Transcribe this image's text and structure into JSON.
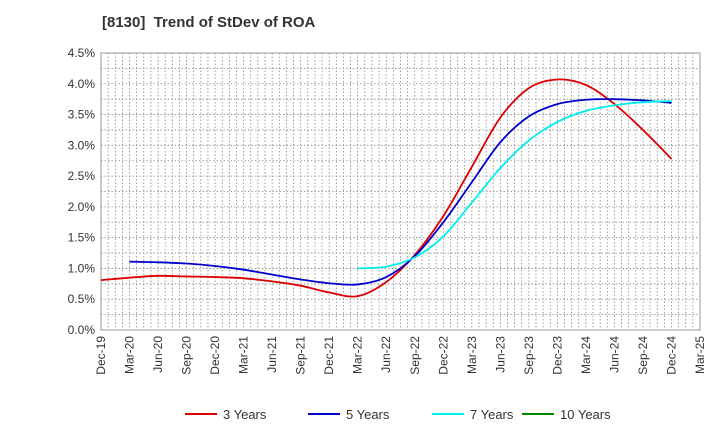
{
  "chart_data": {
    "type": "line",
    "title": "[8130]  Trend of StDev of ROA",
    "xlabel": "",
    "ylabel": "",
    "x_ticks": [
      "Dec-19",
      "Mar-20",
      "Jun-20",
      "Sep-20",
      "Dec-20",
      "Mar-21",
      "Jun-21",
      "Sep-21",
      "Dec-21",
      "Mar-22",
      "Jun-22",
      "Sep-22",
      "Dec-22",
      "Mar-23",
      "Jun-23",
      "Sep-23",
      "Dec-23",
      "Mar-24",
      "Jun-24",
      "Sep-24",
      "Dec-24",
      "Mar-25"
    ],
    "y_ticks": [
      "0.0%",
      "0.5%",
      "1.0%",
      "1.5%",
      "2.0%",
      "2.5%",
      "3.0%",
      "3.5%",
      "4.0%",
      "4.5%"
    ],
    "ylim": [
      0,
      4.5
    ],
    "y_unit": "%",
    "grid": true,
    "legend_position": "bottom",
    "series": [
      {
        "name": "3 Years",
        "color": "#dd0000",
        "x": [
          "Dec-19",
          "Mar-20",
          "Jun-20",
          "Sep-20",
          "Dec-20",
          "Mar-21",
          "Jun-21",
          "Sep-21",
          "Dec-21",
          "Mar-22",
          "Jun-22",
          "Sep-22",
          "Dec-22",
          "Mar-23",
          "Jun-23",
          "Sep-23",
          "Dec-23",
          "Mar-24",
          "Jun-24",
          "Sep-24",
          "Dec-24"
        ],
        "values": [
          0.81,
          0.85,
          0.88,
          0.87,
          0.86,
          0.84,
          0.79,
          0.72,
          0.61,
          0.55,
          0.78,
          1.22,
          1.85,
          2.65,
          3.45,
          3.93,
          4.07,
          3.98,
          3.67,
          3.25,
          2.78
        ]
      },
      {
        "name": "5 Years",
        "color": "#0000cc",
        "x": [
          "Mar-20",
          "Jun-20",
          "Sep-20",
          "Dec-20",
          "Mar-21",
          "Jun-21",
          "Sep-21",
          "Dec-21",
          "Mar-22",
          "Jun-22",
          "Sep-22",
          "Dec-22",
          "Mar-23",
          "Jun-23",
          "Sep-23",
          "Dec-23",
          "Mar-24",
          "Jun-24",
          "Sep-24",
          "Dec-24"
        ],
        "values": [
          1.11,
          1.1,
          1.08,
          1.04,
          0.98,
          0.9,
          0.82,
          0.76,
          0.74,
          0.86,
          1.2,
          1.75,
          2.4,
          3.05,
          3.47,
          3.67,
          3.74,
          3.75,
          3.73,
          3.69
        ]
      },
      {
        "name": "7 Years",
        "color": "#00eeee",
        "x": [
          "Mar-22",
          "Jun-22",
          "Sep-22",
          "Dec-22",
          "Mar-23",
          "Jun-23",
          "Sep-23",
          "Dec-23",
          "Mar-24",
          "Jun-24",
          "Sep-24",
          "Dec-24"
        ],
        "values": [
          1.0,
          1.03,
          1.18,
          1.52,
          2.07,
          2.63,
          3.08,
          3.38,
          3.56,
          3.65,
          3.7,
          3.72
        ]
      },
      {
        "name": "10 Years",
        "color": "#008800",
        "x": [],
        "values": []
      }
    ]
  }
}
